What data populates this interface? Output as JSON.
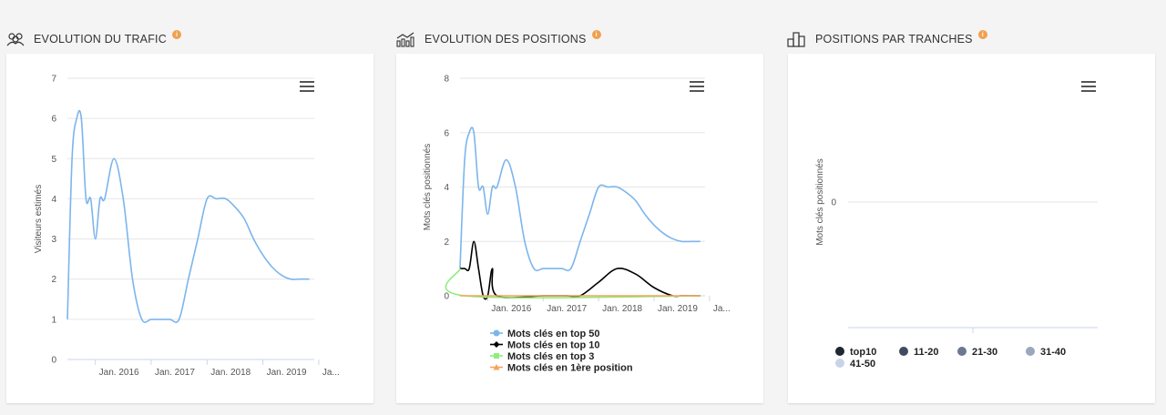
{
  "panels": [
    {
      "title": "EVOLUTION DU TRAFIC",
      "icon": "users-icon",
      "info": "i"
    },
    {
      "title": "EVOLUTION DES POSITIONS",
      "icon": "trend-chart-icon",
      "info": "i"
    },
    {
      "title": "POSITIONS PAR TRANCHES",
      "icon": "bar-chart-icon",
      "info": "i"
    }
  ],
  "colors": {
    "blue": "#7cb5ec",
    "black": "#000000",
    "green": "#90ed7d",
    "orange": "#f7a35c",
    "info": "#f0a050"
  },
  "chart_data": [
    {
      "type": "line",
      "ylabel": "Visiteurs estimés",
      "xlabel": "",
      "ylim": [
        0,
        7
      ],
      "yticks": [
        "0",
        "1",
        "2",
        "3",
        "4",
        "5",
        "6",
        "7"
      ],
      "xticks": [
        "Jan. 2016",
        "Jan. 2017",
        "Jan. 2018",
        "Jan. 2019",
        "Ja..."
      ],
      "grid": true,
      "series": [
        {
          "name": "",
          "color": "#7cb5ec",
          "x": [
            "2015-07",
            "2015-08",
            "2015-09",
            "2015-10",
            "2015-11",
            "2015-12",
            "2016-01",
            "2016-02",
            "2016-03",
            "2016-05",
            "2016-07",
            "2016-09",
            "2016-11",
            "2017-01",
            "2017-03",
            "2017-05",
            "2017-07",
            "2017-09",
            "2017-11",
            "2018-01",
            "2018-03",
            "2018-05",
            "2018-07",
            "2018-09",
            "2018-11",
            "2019-01",
            "2019-03",
            "2019-05",
            "2019-07",
            "2019-09",
            "2019-11"
          ],
          "y": [
            1,
            5,
            6,
            6,
            4,
            4,
            3,
            4,
            4,
            5,
            4,
            2,
            1,
            1,
            1,
            1,
            1,
            2,
            3,
            4,
            4,
            4,
            3.8,
            3.5,
            3,
            2.6,
            2.3,
            2.1,
            2,
            2,
            2
          ]
        }
      ]
    },
    {
      "type": "line",
      "ylabel": "Mots clés positionnés",
      "xlabel": "",
      "ylim": [
        0,
        8
      ],
      "yticks": [
        "0",
        "2",
        "4",
        "6",
        "8"
      ],
      "xticks": [
        "Jan. 2016",
        "Jan. 2017",
        "Jan. 2018",
        "Jan. 2019",
        "Ja..."
      ],
      "grid": true,
      "legend": "bottom",
      "series": [
        {
          "name": "Mots clés en top 50",
          "color": "#7cb5ec",
          "marker": "circle",
          "x": [
            "2015-07",
            "2015-08",
            "2015-09",
            "2015-10",
            "2015-11",
            "2015-12",
            "2016-01",
            "2016-02",
            "2016-03",
            "2016-05",
            "2016-07",
            "2016-09",
            "2016-11",
            "2017-01",
            "2017-03",
            "2017-05",
            "2017-07",
            "2017-09",
            "2017-11",
            "2018-01",
            "2018-03",
            "2018-05",
            "2018-07",
            "2018-09",
            "2018-11",
            "2019-01",
            "2019-03",
            "2019-05",
            "2019-07",
            "2019-09",
            "2019-11"
          ],
          "y": [
            1,
            5,
            6,
            6,
            4,
            4,
            3,
            4,
            4,
            5,
            4,
            2,
            1,
            1,
            1,
            1,
            1,
            2,
            3,
            4,
            4,
            4,
            3.8,
            3.5,
            3,
            2.6,
            2.3,
            2.1,
            2,
            2,
            2
          ]
        },
        {
          "name": "Mots clés en top 10",
          "color": "#000000",
          "marker": "diamond",
          "x": [
            "2015-07",
            "2015-08",
            "2015-09",
            "2015-10",
            "2015-11",
            "2015-12",
            "2016-01",
            "2016-02",
            "2016-03",
            "2017-01",
            "2017-06",
            "2017-09",
            "2018-01",
            "2018-05",
            "2018-09",
            "2019-01",
            "2019-05",
            "2019-07",
            "2019-11"
          ],
          "y": [
            1,
            1,
            1,
            2,
            1,
            0,
            0,
            1,
            0,
            0,
            0,
            0,
            0.5,
            1,
            0.8,
            0.3,
            0,
            0,
            0
          ]
        },
        {
          "name": "Mots clés en top 3",
          "color": "#90ed7d",
          "marker": "square",
          "x": [
            "2015-07",
            "2015-08",
            "2019-11"
          ],
          "y": [
            1,
            0,
            0
          ]
        },
        {
          "name": "Mots clés en 1ère position",
          "color": "#f7a35c",
          "marker": "triangle",
          "x": [
            "2015-07",
            "2019-11"
          ],
          "y": [
            0,
            0
          ]
        }
      ]
    },
    {
      "type": "bar",
      "ylabel": "Mots clés positionnés",
      "xlabel": "",
      "yticks": [
        "0"
      ],
      "legend": "bottom",
      "series": [
        {
          "name": "top10",
          "color": "#1f2730",
          "values": []
        },
        {
          "name": "11-20",
          "color": "#3e4b60",
          "values": []
        },
        {
          "name": "21-30",
          "color": "#6b7890",
          "values": []
        },
        {
          "name": "31-40",
          "color": "#9aa7bf",
          "values": []
        },
        {
          "name": "41-50",
          "color": "#c8d3e8",
          "values": []
        }
      ]
    }
  ]
}
